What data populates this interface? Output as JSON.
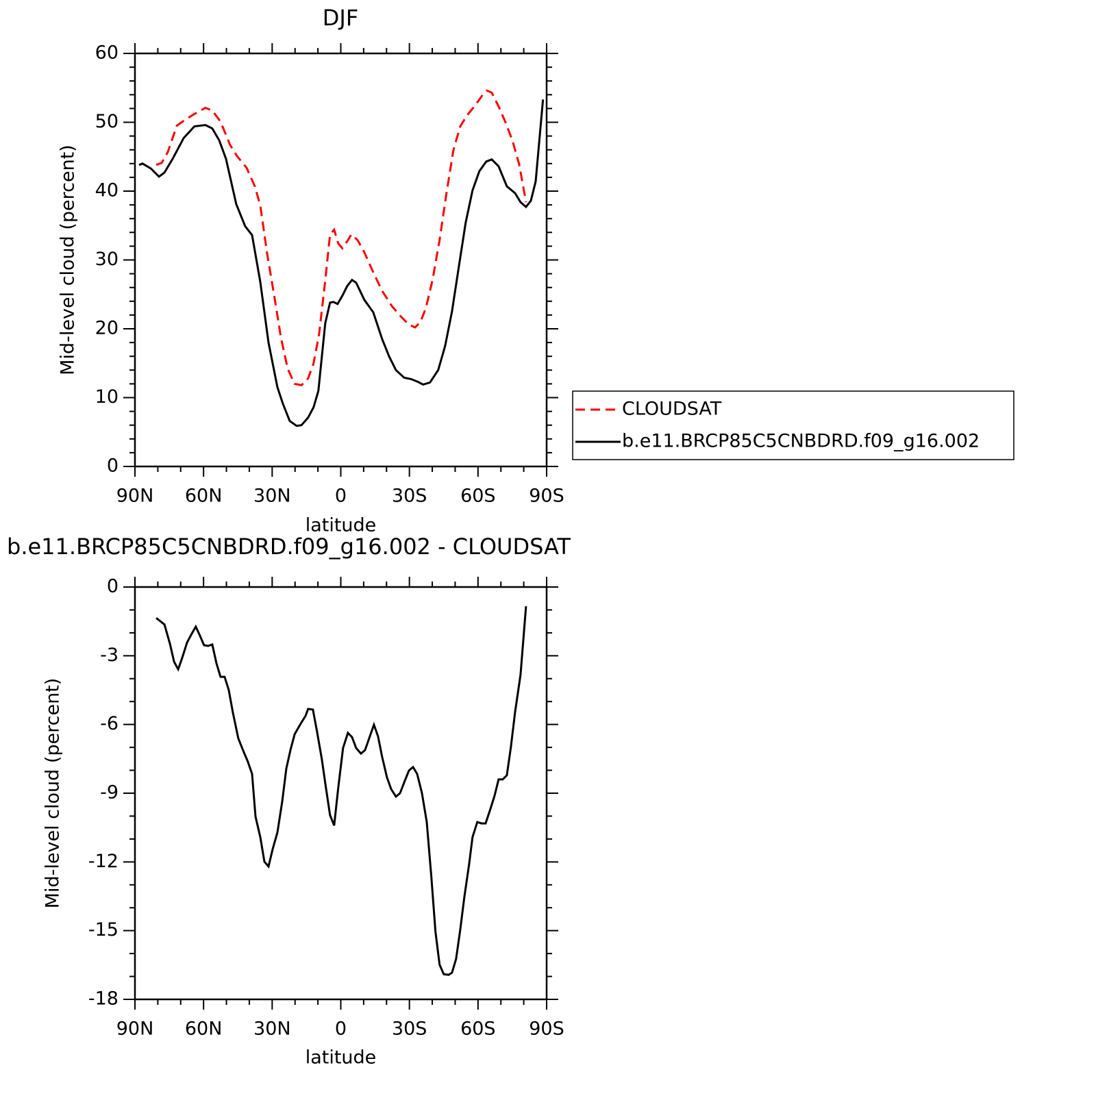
{
  "chart_data": [
    {
      "type": "line",
      "title": "DJF",
      "x_label": "latitude",
      "y_label": "Mid-level cloud (percent)",
      "xlim": [
        90,
        -90
      ],
      "xticks": [
        {
          "value": 90,
          "label": "90N"
        },
        {
          "value": 60,
          "label": "60N"
        },
        {
          "value": 30,
          "label": "30N"
        },
        0,
        {
          "value": -30,
          "label": "30S"
        },
        {
          "value": -60,
          "label": "60S"
        },
        {
          "value": -90,
          "label": "90S"
        }
      ],
      "ylim": [
        0,
        60
      ],
      "yticks": [
        0,
        10,
        20,
        30,
        40,
        50,
        60
      ],
      "x_minor_per_major": 3,
      "y_minor_per_major": 5,
      "legend": "right",
      "series": [
        {
          "name": "CLOUDSAT",
          "color": "#ff0000",
          "dash": "dashed",
          "x": [
            80.7,
            78.3,
            75.6,
            71.7,
            68.7,
            64.5,
            59.2,
            56.2,
            52.6,
            48.4,
            45.4,
            41.2,
            37.6,
            35.2,
            32.2,
            29.2,
            26.2,
            23.2,
            20.2,
            17.2,
            14.3,
            11.9,
            9.5,
            6.8,
            4.7,
            2.9,
            1.1,
            -0.7,
            -2.8,
            -4.6,
            -7.3,
            -10.3,
            -14.2,
            -18.1,
            -22.3,
            -26.2,
            -29.8,
            -32.5,
            -34.8,
            -37.2,
            -40.2,
            -43.2,
            -46.2,
            -49.2,
            -52.2,
            -55.2,
            -59.1,
            -62.1,
            -63.9,
            -66.0,
            -69.0,
            -72.0,
            -75.0,
            -78.0,
            -81.0
          ],
          "values": [
            43.8,
            44.1,
            45.7,
            49.5,
            50.2,
            51.1,
            52.1,
            51.7,
            50.1,
            46.7,
            45.1,
            43.4,
            40.7,
            37.9,
            30.9,
            25.0,
            18.8,
            14.2,
            12.0,
            11.8,
            12.8,
            15.0,
            19.2,
            27.0,
            33.7,
            34.4,
            32.4,
            31.7,
            32.7,
            33.7,
            32.9,
            31.1,
            28.2,
            25.5,
            23.3,
            21.8,
            20.6,
            20.2,
            21.0,
            23.0,
            27.2,
            32.9,
            39.7,
            45.9,
            49.4,
            51.0,
            52.6,
            54.0,
            54.6,
            54.3,
            52.3,
            50.0,
            47.4,
            43.9,
            38.4
          ]
        },
        {
          "name": "b.e11.BRCP85C5CNBDRD.f09_g16.002",
          "color": "#000000",
          "dash": "solid",
          "x": [
            88.2,
            86.7,
            83.1,
            79.5,
            77.1,
            73.5,
            68.7,
            64.0,
            59.2,
            56.2,
            53.2,
            50.2,
            45.7,
            41.8,
            38.8,
            35.2,
            31.6,
            27.7,
            25.3,
            22.3,
            19.3,
            17.2,
            14.3,
            11.9,
            9.8,
            6.8,
            4.7,
            3.2,
            1.4,
            -0.7,
            -2.8,
            -4.9,
            -6.7,
            -10.3,
            -14.2,
            -18.1,
            -21.1,
            -24.1,
            -27.7,
            -30.7,
            -33.7,
            -36.0,
            -39.0,
            -42.6,
            -45.6,
            -48.6,
            -51.6,
            -54.6,
            -57.6,
            -60.6,
            -63.6,
            -66.0,
            -69.0,
            -72.6,
            -76.2,
            -78.6,
            -81.0,
            -83.1,
            -85.2,
            -88.4
          ],
          "values": [
            43.8,
            44.0,
            43.3,
            42.1,
            42.7,
            44.7,
            47.7,
            49.4,
            49.6,
            49.1,
            47.4,
            44.7,
            38.1,
            34.9,
            33.6,
            26.8,
            18.0,
            11.5,
            9.1,
            6.6,
            5.9,
            6.0,
            7.1,
            8.6,
            11.0,
            20.8,
            23.8,
            23.9,
            23.6,
            24.8,
            26.2,
            27.1,
            26.7,
            24.2,
            22.4,
            18.5,
            16.0,
            14.0,
            12.9,
            12.7,
            12.3,
            11.9,
            12.2,
            14.0,
            17.5,
            22.5,
            29.0,
            35.4,
            40.1,
            42.9,
            44.3,
            44.6,
            43.6,
            40.7,
            39.7,
            38.4,
            37.7,
            38.6,
            41.4,
            53.3
          ]
        }
      ]
    },
    {
      "type": "line",
      "title": "b.e11.BRCP85C5CNBDRD.f09_g16.002 - CLOUDSAT",
      "x_label": "latitude",
      "y_label": "Mid-level cloud (percent)",
      "xlim": [
        90,
        -90
      ],
      "xticks": [
        {
          "value": 90,
          "label": "90N"
        },
        {
          "value": 60,
          "label": "60N"
        },
        {
          "value": 30,
          "label": "30N"
        },
        0,
        {
          "value": -30,
          "label": "30S"
        },
        {
          "value": -60,
          "label": "60S"
        },
        {
          "value": -90,
          "label": "90S"
        }
      ],
      "ylim": [
        -18,
        0
      ],
      "yticks": [
        -18,
        -15,
        -12,
        -9,
        -6,
        -3,
        0
      ],
      "x_minor_per_major": 3,
      "y_minor_per_major": 3,
      "series": [
        {
          "color": "#000000",
          "dash": "solid",
          "x": [
            80.7,
            77.1,
            74.7,
            72.9,
            71.1,
            69.3,
            67.2,
            65.1,
            63.4,
            61.6,
            59.8,
            58.0,
            56.2,
            54.4,
            52.6,
            50.8,
            49.0,
            47.2,
            44.8,
            42.4,
            40.6,
            38.8,
            37.3,
            35.2,
            33.4,
            31.6,
            29.8,
            27.7,
            25.6,
            23.8,
            22.0,
            20.2,
            17.8,
            15.4,
            14.3,
            12.2,
            10.4,
            8.3,
            6.5,
            4.7,
            2.9,
            1.1,
            -1.0,
            -3.1,
            -4.9,
            -6.7,
            -8.8,
            -10.6,
            -12.7,
            -14.5,
            -16.3,
            -18.1,
            -20.2,
            -22.0,
            -24.1,
            -25.9,
            -28.0,
            -29.8,
            -31.6,
            -33.4,
            -35.5,
            -37.6,
            -39.6,
            -41.4,
            -43.2,
            -45.0,
            -47.1,
            -48.6,
            -50.4,
            -52.2,
            -54.0,
            -56.1,
            -57.6,
            -59.7,
            -61.5,
            -63.3,
            -65.5,
            -67.2,
            -69.0,
            -70.8,
            -72.6,
            -74.4,
            -76.2,
            -78.6,
            -81.0
          ],
          "values": [
            -1.35,
            -1.64,
            -2.48,
            -3.26,
            -3.59,
            -3.08,
            -2.42,
            -2.03,
            -1.73,
            -2.12,
            -2.54,
            -2.57,
            -2.51,
            -3.32,
            -3.92,
            -3.92,
            -4.49,
            -5.47,
            -6.61,
            -7.21,
            -7.63,
            -8.16,
            -10.02,
            -10.92,
            -11.99,
            -12.2,
            -11.45,
            -10.71,
            -9.36,
            -7.92,
            -7.12,
            -6.43,
            -6.01,
            -5.62,
            -5.32,
            -5.35,
            -6.31,
            -7.51,
            -8.76,
            -9.96,
            -10.41,
            -8.76,
            -7.03,
            -6.37,
            -6.55,
            -7.03,
            -7.27,
            -7.12,
            -6.52,
            -6.01,
            -6.52,
            -7.42,
            -8.31,
            -8.82,
            -9.15,
            -9.0,
            -8.46,
            -8.01,
            -7.86,
            -8.16,
            -9.0,
            -10.26,
            -12.65,
            -15.04,
            -16.48,
            -16.9,
            -16.93,
            -16.84,
            -16.24,
            -14.98,
            -13.55,
            -12.11,
            -10.92,
            -10.26,
            -10.32,
            -10.32,
            -9.66,
            -9.12,
            -8.4,
            -8.4,
            -8.22,
            -6.97,
            -5.47,
            -3.83,
            -0.84
          ]
        }
      ]
    }
  ]
}
